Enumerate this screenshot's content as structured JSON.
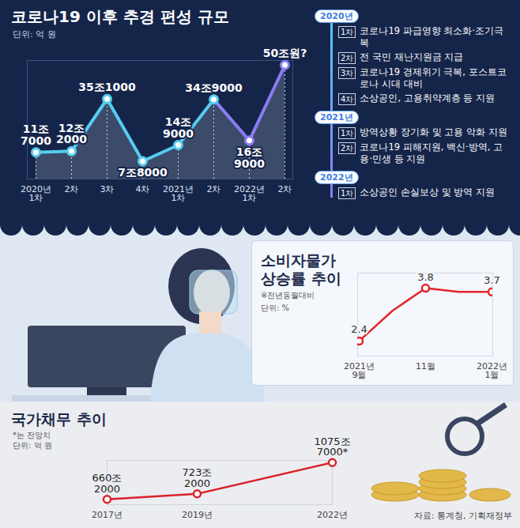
{
  "chart_data": [
    {
      "type": "line",
      "title": "코로나19 이후 추경 편성 규모",
      "subtitle": "단위: 억 원",
      "categories": [
        "2020년 1차",
        "2차",
        "3차",
        "4차",
        "2021년 1차",
        "2차",
        "2022년 1차",
        "2차"
      ],
      "values": [
        117000,
        122000,
        351000,
        78000,
        149000,
        349000,
        169000,
        500000
      ],
      "value_labels": [
        "11조 7000",
        "12조 2000",
        "35조1000",
        "7조8000",
        "14조 9000",
        "34조9000",
        "16조 9000",
        "50조원?"
      ],
      "colors": [
        "#56cdf0",
        "#56cdf0",
        "#56cdf0",
        "#56cdf0",
        "#56cdf0",
        "#56cdf0",
        "#8b7cf6",
        "#8b7cf6"
      ],
      "ylim": [
        0,
        520000
      ],
      "yticks": [],
      "tick_labels": "x",
      "data_labels": true,
      "grid": false,
      "marker": "circle"
    },
    {
      "type": "line",
      "title": "소비자물가 상승률 추이",
      "annotations": [
        "※전년동월대비",
        "단위: %"
      ],
      "categories": [
        "2021년 9월",
        null,
        "11월",
        null,
        "2022년 1월"
      ],
      "values": [
        2.4,
        3.2,
        3.8,
        3.7,
        3.7
      ],
      "value_labels": [
        "2.4",
        null,
        "3.8",
        null,
        "3.7"
      ],
      "color": "#e3262b",
      "ylim": [
        2.0,
        4.2
      ],
      "yticks": [],
      "tick_labels": "x",
      "data_labels": true,
      "grid": false,
      "marker": "circle"
    },
    {
      "type": "line",
      "title": "국가채무 추이",
      "annotations": [
        "*는 전망치",
        "단위: 억 원"
      ],
      "x": [
        2017,
        2019,
        2022
      ],
      "values": [
        6602000,
        7232000,
        10757000
      ],
      "value_labels": [
        "660조 2000",
        "723조 2000",
        "1075조 7000*"
      ],
      "color": "#d8232a",
      "xlim": [
        2017,
        2022
      ],
      "xticks": [
        {
          "value": 2017,
          "label": "2017년"
        },
        {
          "value": 2019,
          "label": "2019년"
        },
        {
          "value": 2022,
          "label": "2022년"
        }
      ],
      "ylim": [
        6000000,
        11000000
      ],
      "yticks": [],
      "tick_labels": "x",
      "data_labels": true,
      "grid": false,
      "marker": "circle"
    }
  ],
  "timeline": [
    {
      "year": "2020년",
      "items": [
        {
          "label": "1차",
          "text": "코로나19 파급영향 최소화·조기극복"
        },
        {
          "label": "2차",
          "text": "전 국민 재난지원금 지급"
        },
        {
          "label": "3차",
          "text": "코로나19 경제위기 극복, 포스트코로나 시대 대비"
        },
        {
          "label": "4차",
          "text": "소상공인, 고용취약계층 등 지원"
        }
      ]
    },
    {
      "year": "2021년",
      "items": [
        {
          "label": "1차",
          "text": "방역상황 장기화 및 고용 악화 지원"
        },
        {
          "label": "2차",
          "text": "코로나19 피해지원, 백신·방역, 고용·민생 등 지원"
        }
      ]
    },
    {
      "year": "2022년",
      "items": [
        {
          "label": "1차",
          "text": "소상공인 손실보상 및 방역 지원"
        }
      ]
    }
  ],
  "source": "자료: 통계청, 기획재정부"
}
